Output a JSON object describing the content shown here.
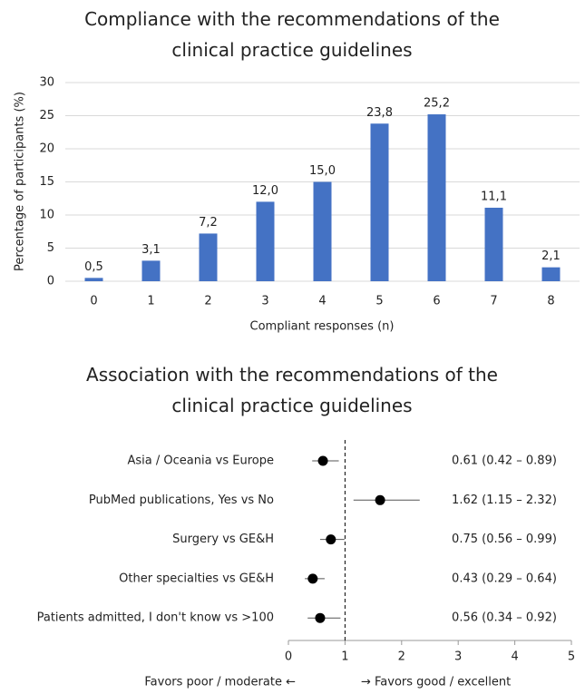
{
  "chart_data": [
    {
      "type": "bar",
      "title": "Compliance with the recommendations of the clinical practice guidelines",
      "x_label": "Compliant responses (n)",
      "y_label": "Percentage of participants (%)",
      "categories": [
        "0",
        "1",
        "2",
        "3",
        "4",
        "5",
        "6",
        "7",
        "8"
      ],
      "values": [
        0.5,
        3.1,
        7.2,
        12.0,
        15.0,
        23.8,
        25.2,
        11.1,
        2.1
      ],
      "value_labels": [
        "0,5",
        "3,1",
        "7,2",
        "12,0",
        "15,0",
        "23,8",
        "25,2",
        "11,1",
        "2,1"
      ],
      "color": "#4472c4",
      "ylim": [
        0,
        30
      ],
      "yticks": [
        0,
        5,
        10,
        15,
        20,
        25,
        30
      ],
      "grid": true
    },
    {
      "type": "forest",
      "title": "Association with the recommendations of the clinical practice guidelines",
      "x_label_left": "Favors poor / moderate  ←",
      "x_label_right": "→  Favors good / excellent",
      "categories": [
        "Asia / Oceania vs Europe",
        "PubMed publications, Yes vs No",
        "Surgery vs GE&H",
        "Other specialties vs GE&H",
        "Patients admitted, I don't know vs >100"
      ],
      "values": [
        0.61,
        1.62,
        0.75,
        0.43,
        0.56
      ],
      "ci_low": [
        0.42,
        1.15,
        0.56,
        0.29,
        0.34
      ],
      "ci_high": [
        0.89,
        2.32,
        0.99,
        0.64,
        0.92
      ],
      "value_labels": [
        "0.61 (0.42 – 0.89)",
        "1.62 (1.15 – 2.32)",
        "0.75 (0.56 – 0.99)",
        "0.43 (0.29 – 0.64)",
        "0.56 (0.34 – 0.92)"
      ],
      "reference": 1,
      "color": "#000000",
      "xlim": [
        0,
        5
      ],
      "xticks": [
        0,
        1,
        2,
        3,
        4,
        5
      ]
    }
  ]
}
